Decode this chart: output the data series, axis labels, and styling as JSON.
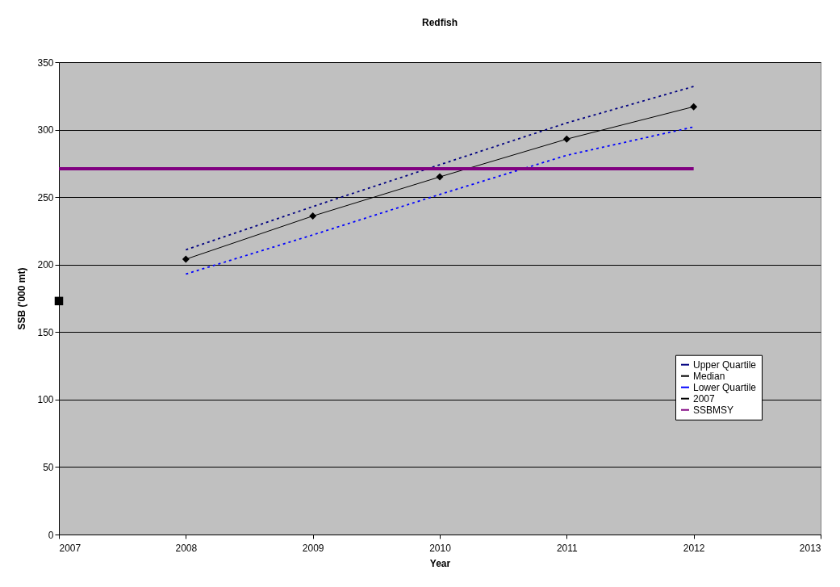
{
  "chart_data": {
    "type": "line",
    "title": "Redfish",
    "xlabel": "Year",
    "ylabel": "SSB ('000 mt)",
    "xlim": [
      2007,
      2013
    ],
    "xticks": [
      2007,
      2008,
      2009,
      2010,
      2011,
      2012,
      2013
    ],
    "ylim": [
      0,
      350
    ],
    "yticks": [
      0,
      50,
      100,
      150,
      200,
      250,
      300,
      350
    ],
    "grid": "y",
    "legend": "right",
    "series": [
      {
        "name": "Upper Quartile",
        "color": "#000080",
        "line_style": "dotted",
        "marker": "none",
        "x": [
          2008,
          2009,
          2010,
          2011,
          2012
        ],
        "values": [
          211,
          243,
          274,
          305,
          332
        ]
      },
      {
        "name": "Median",
        "color": "#000000",
        "line_style": "solid",
        "marker": "diamond",
        "x": [
          2008,
          2009,
          2010,
          2011,
          2012
        ],
        "values": [
          204,
          236,
          265,
          293,
          317
        ]
      },
      {
        "name": "Lower Quartile",
        "color": "#0000ff",
        "line_style": "dotted",
        "marker": "none",
        "x": [
          2008,
          2009,
          2010,
          2011,
          2012
        ],
        "values": [
          193,
          222,
          252,
          281,
          302
        ]
      },
      {
        "name": "2007",
        "type": "scatter",
        "color": "#000000",
        "marker": "square",
        "x": [
          2007
        ],
        "values": [
          173
        ]
      },
      {
        "name": "SSBMSY",
        "color": "#800080",
        "line_style": "solid",
        "marker": "none",
        "x": [
          2007,
          2012
        ],
        "values": [
          271,
          271
        ]
      }
    ]
  }
}
